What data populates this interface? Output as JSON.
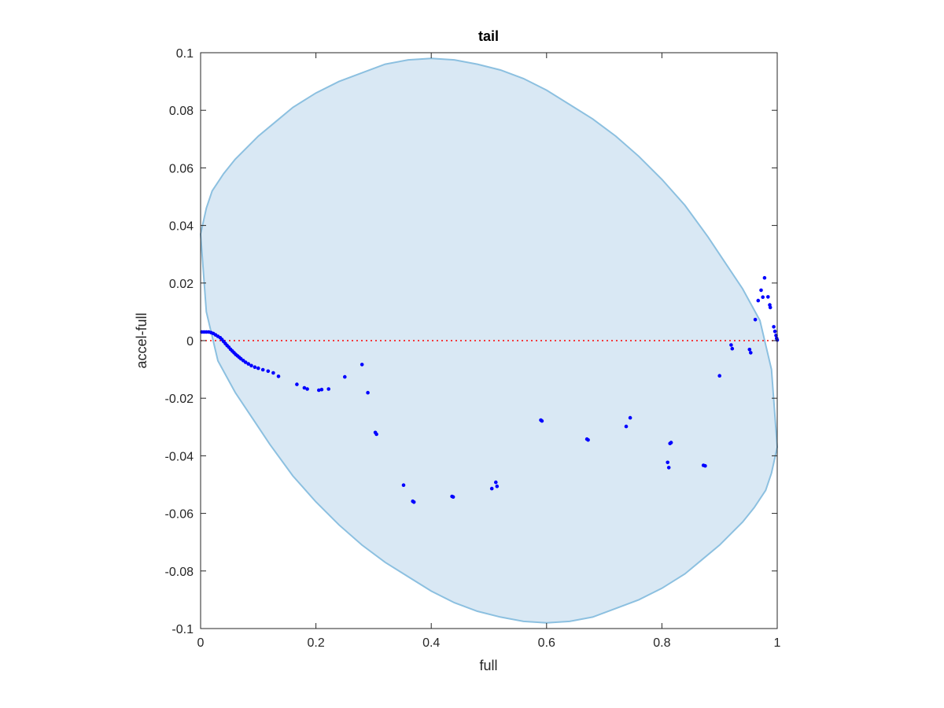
{
  "chart_data": {
    "type": "scatter",
    "title": "tail",
    "xlabel": "full",
    "ylabel": "accel-full",
    "xlim": [
      0,
      1
    ],
    "ylim": [
      -0.1,
      0.1
    ],
    "xticks": [
      0,
      0.2,
      0.4,
      0.6,
      0.8,
      1
    ],
    "xtick_labels": [
      "0",
      "0.2",
      "0.4",
      "0.6",
      "0.8",
      "1"
    ],
    "yticks": [
      -0.1,
      -0.08,
      -0.06,
      -0.04,
      -0.02,
      0,
      0.02,
      0.04,
      0.06,
      0.08,
      0.1
    ],
    "ytick_labels": [
      "-0.1",
      "-0.08",
      "-0.06",
      "-0.04",
      "-0.02",
      "0",
      "0.02",
      "0.04",
      "0.06",
      "0.08",
      "0.1"
    ],
    "grid": false,
    "reference_line": {
      "y": 0,
      "style": "dotted",
      "color": "#ff0000"
    },
    "region": {
      "shape": "ellipse",
      "fill": "#d9e8f4",
      "stroke": "#8cc0e0",
      "boundary": [
        [
          0,
          0.037
        ],
        [
          0.01,
          0.046
        ],
        [
          0.02,
          0.052
        ],
        [
          0.04,
          0.058
        ],
        [
          0.06,
          0.063
        ],
        [
          0.08,
          0.067
        ],
        [
          0.1,
          0.071
        ],
        [
          0.13,
          0.076
        ],
        [
          0.16,
          0.081
        ],
        [
          0.2,
          0.086
        ],
        [
          0.24,
          0.09
        ],
        [
          0.28,
          0.093
        ],
        [
          0.32,
          0.096
        ],
        [
          0.36,
          0.0975
        ],
        [
          0.4,
          0.098
        ],
        [
          0.44,
          0.0975
        ],
        [
          0.48,
          0.096
        ],
        [
          0.52,
          0.094
        ],
        [
          0.56,
          0.091
        ],
        [
          0.6,
          0.087
        ],
        [
          0.64,
          0.082
        ],
        [
          0.68,
          0.077
        ],
        [
          0.72,
          0.071
        ],
        [
          0.76,
          0.064
        ],
        [
          0.8,
          0.056
        ],
        [
          0.84,
          0.047
        ],
        [
          0.88,
          0.036
        ],
        [
          0.91,
          0.027
        ],
        [
          0.94,
          0.018
        ],
        [
          0.97,
          0.007
        ],
        [
          0.99,
          -0.01
        ],
        [
          1,
          -0.037
        ],
        [
          0.99,
          -0.046
        ],
        [
          0.98,
          -0.052
        ],
        [
          0.96,
          -0.058
        ],
        [
          0.94,
          -0.063
        ],
        [
          0.92,
          -0.067
        ],
        [
          0.9,
          -0.071
        ],
        [
          0.87,
          -0.076
        ],
        [
          0.84,
          -0.081
        ],
        [
          0.8,
          -0.086
        ],
        [
          0.76,
          -0.09
        ],
        [
          0.72,
          -0.093
        ],
        [
          0.68,
          -0.096
        ],
        [
          0.64,
          -0.0975
        ],
        [
          0.6,
          -0.098
        ],
        [
          0.56,
          -0.0975
        ],
        [
          0.52,
          -0.096
        ],
        [
          0.48,
          -0.094
        ],
        [
          0.44,
          -0.091
        ],
        [
          0.4,
          -0.087
        ],
        [
          0.36,
          -0.082
        ],
        [
          0.32,
          -0.077
        ],
        [
          0.28,
          -0.071
        ],
        [
          0.24,
          -0.064
        ],
        [
          0.2,
          -0.056
        ],
        [
          0.16,
          -0.047
        ],
        [
          0.12,
          -0.036
        ],
        [
          0.09,
          -0.027
        ],
        [
          0.06,
          -0.018
        ],
        [
          0.03,
          -0.007
        ],
        [
          0.01,
          0.01
        ],
        [
          0,
          0.037
        ]
      ]
    },
    "series": [
      {
        "color": "#0000ff",
        "points": [
          [
            0.002,
            0.003
          ],
          [
            0.006,
            0.003
          ],
          [
            0.01,
            0.003
          ],
          [
            0.014,
            0.003
          ],
          [
            0.018,
            0.0028
          ],
          [
            0.022,
            0.0025
          ],
          [
            0.026,
            0.002
          ],
          [
            0.03,
            0.0015
          ],
          [
            0.034,
            0.001
          ],
          [
            0.037,
            0.0004
          ],
          [
            0.04,
            -0.0003
          ],
          [
            0.043,
            -0.001
          ],
          [
            0.046,
            -0.0017
          ],
          [
            0.049,
            -0.0023
          ],
          [
            0.052,
            -0.003
          ],
          [
            0.055,
            -0.0036
          ],
          [
            0.058,
            -0.0042
          ],
          [
            0.061,
            -0.0048
          ],
          [
            0.064,
            -0.0053
          ],
          [
            0.067,
            -0.0058
          ],
          [
            0.07,
            -0.0063
          ],
          [
            0.074,
            -0.0069
          ],
          [
            0.078,
            -0.0075
          ],
          [
            0.083,
            -0.0081
          ],
          [
            0.088,
            -0.0087
          ],
          [
            0.094,
            -0.0092
          ],
          [
            0.1,
            -0.0096
          ],
          [
            0.108,
            -0.0101
          ],
          [
            0.117,
            -0.0106
          ],
          [
            0.126,
            -0.0112
          ],
          [
            0.135,
            -0.0124
          ],
          [
            0.167,
            -0.0152
          ],
          [
            0.18,
            -0.0164
          ],
          [
            0.185,
            -0.0168
          ],
          [
            0.205,
            -0.0172
          ],
          [
            0.21,
            -0.017
          ],
          [
            0.222,
            -0.0168
          ],
          [
            0.25,
            -0.0126
          ],
          [
            0.28,
            -0.0083
          ],
          [
            0.29,
            -0.0181
          ],
          [
            0.303,
            -0.0319
          ],
          [
            0.305,
            -0.0325
          ],
          [
            0.352,
            -0.0502
          ],
          [
            0.368,
            -0.0558
          ],
          [
            0.37,
            -0.0561
          ],
          [
            0.436,
            -0.0541
          ],
          [
            0.438,
            -0.0543
          ],
          [
            0.505,
            -0.0514
          ],
          [
            0.512,
            -0.0492
          ],
          [
            0.514,
            -0.0506
          ],
          [
            0.59,
            -0.0276
          ],
          [
            0.592,
            -0.0279
          ],
          [
            0.67,
            -0.0342
          ],
          [
            0.672,
            -0.0345
          ],
          [
            0.738,
            -0.0298
          ],
          [
            0.745,
            -0.0268
          ],
          [
            0.81,
            -0.0423
          ],
          [
            0.812,
            -0.0441
          ],
          [
            0.814,
            -0.0357
          ],
          [
            0.816,
            -0.0354
          ],
          [
            0.872,
            -0.0433
          ],
          [
            0.875,
            -0.0435
          ],
          [
            0.9,
            -0.0122
          ],
          [
            0.92,
            -0.0015
          ],
          [
            0.922,
            -0.0028
          ],
          [
            0.952,
            -0.0031
          ],
          [
            0.954,
            -0.0042
          ],
          [
            0.962,
            0.0073
          ],
          [
            0.967,
            0.0139
          ],
          [
            0.972,
            0.0175
          ],
          [
            0.975,
            0.0151
          ],
          [
            0.978,
            0.0218
          ],
          [
            0.984,
            0.0152
          ],
          [
            0.987,
            0.0124
          ],
          [
            0.988,
            0.0115
          ],
          [
            0.994,
            0.0048
          ],
          [
            0.996,
            0.0032
          ],
          [
            0.998,
            0.0018
          ],
          [
            0.999,
            0.0008
          ],
          [
            1.0,
            0.0002
          ]
        ]
      }
    ]
  }
}
